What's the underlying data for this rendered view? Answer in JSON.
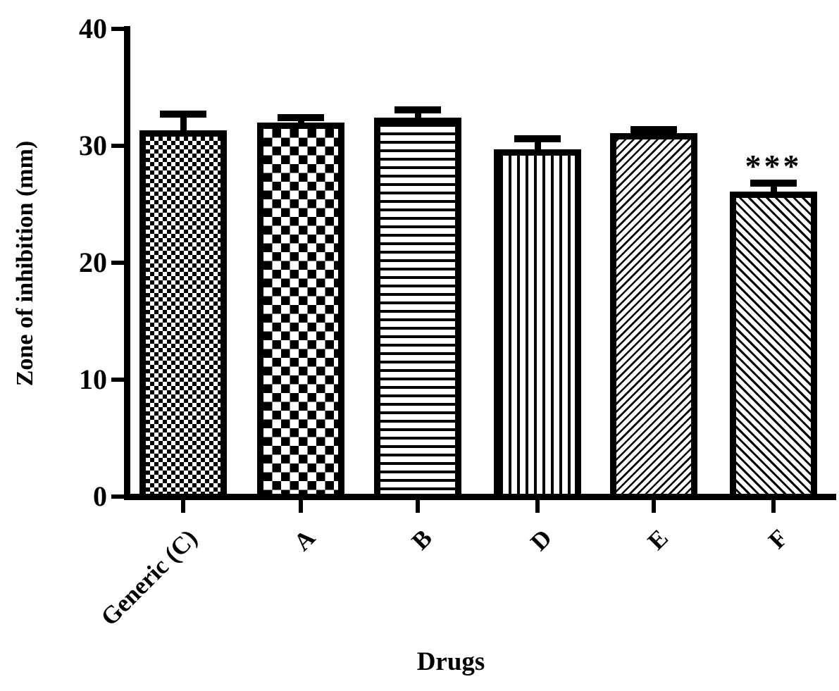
{
  "figure": {
    "background": "#ffffff",
    "ink_color": "#000000"
  },
  "chart_data": {
    "type": "bar",
    "title": "",
    "xlabel": "Drugs",
    "ylabel": "Zone of inhibition (mm)",
    "ylim": [
      0,
      40
    ],
    "yticks": [
      0,
      10,
      20,
      30,
      40
    ],
    "grid": false,
    "legend_position": "none",
    "bar_fill_style": "black-and-white hatch patterns",
    "error_bar_direction": "upper-only",
    "category_label_rotation_deg": -45,
    "categories": [
      "Generic (C)",
      "A",
      "B",
      "D",
      "E",
      "F"
    ],
    "series": [
      {
        "name": "Zone of inhibition (mm)",
        "values": [
          31.3,
          32.0,
          32.4,
          29.7,
          31.1,
          26.1
        ],
        "error_plus": [
          1.7,
          0.7,
          1.0,
          1.2,
          0.6,
          1.0
        ],
        "patterns": [
          "checker-fine",
          "checker-coarse",
          "horizontal-lines",
          "vertical-lines",
          "diagonal-up",
          "diagonal-down"
        ]
      }
    ],
    "annotations": [
      {
        "category": "F",
        "text": "***"
      }
    ]
  }
}
